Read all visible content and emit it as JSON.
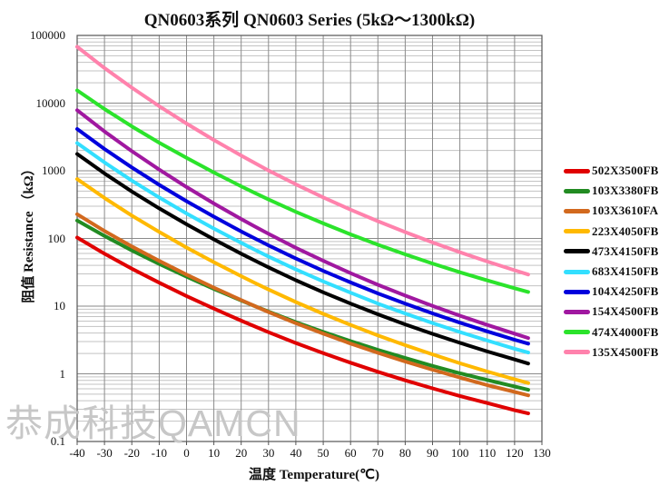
{
  "chart_data": {
    "type": "line",
    "title": "QN0603系列  QN0603 Series (5kΩ～1300kΩ)",
    "xlabel": "温度 Temperature(℃)",
    "ylabel": "阻值 Resistance （kΩ）",
    "watermark": "恭成科技QAMCN",
    "legend_position": "right",
    "x_axis": {
      "min": -40,
      "max": 130,
      "ticks": [
        -40,
        -30,
        -20,
        -10,
        0,
        10,
        20,
        30,
        40,
        50,
        60,
        70,
        80,
        90,
        100,
        110,
        120,
        130
      ]
    },
    "y_axis": {
      "scale": "log",
      "min": 0.1,
      "max": 100000,
      "unit": "kΩ",
      "tick_labels": [
        "100000",
        "10000",
        "1000",
        "100",
        "10",
        "1",
        "0.1"
      ]
    },
    "grid": {
      "major_color": "#8a8a8a",
      "minor_color": "#c3c3c3",
      "border_color": "#555555"
    },
    "x": [
      -40,
      -30,
      -20,
      -10,
      0,
      10,
      20,
      25,
      30,
      40,
      50,
      60,
      70,
      80,
      90,
      100,
      110,
      120,
      125
    ],
    "series": [
      {
        "name": "502X3500FB",
        "color": "#E00000",
        "values": [
          103,
          59.5,
          35.7,
          22.2,
          14.1,
          9.2,
          6.1,
          5,
          4.12,
          2.85,
          2.02,
          1.46,
          1.07,
          0.8,
          0.61,
          0.47,
          0.37,
          0.29,
          0.26
        ]
      },
      {
        "name": "103X3380FB",
        "color": "#228B22",
        "values": [
          184,
          109,
          66.6,
          42,
          27.2,
          18,
          12.1,
          10,
          8.3,
          5.81,
          4.16,
          3.04,
          2.26,
          1.71,
          1.31,
          1.02,
          0.81,
          0.65,
          0.58
        ]
      },
      {
        "name": "103X3610FA",
        "color": "#D2691E",
        "values": [
          228,
          129,
          76.3,
          46.6,
          29.2,
          18.7,
          12.3,
          10,
          8.19,
          5.6,
          3.92,
          2.8,
          2.04,
          1.52,
          1.15,
          0.88,
          0.68,
          0.54,
          0.48
        ]
      },
      {
        "name": "223X4050FB",
        "color": "#FFB900",
        "values": [
          756,
          397,
          218,
          125,
          73.5,
          44.6,
          27.7,
          22,
          17.6,
          11.5,
          7.69,
          5.28,
          3.7,
          2.65,
          1.94,
          1.43,
          1.08,
          0.83,
          0.73
        ]
      },
      {
        "name": "473X4150FB",
        "color": "#000000",
        "values": [
          1770,
          915,
          495,
          278,
          162,
          97,
          59.5,
          47,
          37.4,
          24.1,
          16,
          10.9,
          7.57,
          5.38,
          3.89,
          2.87,
          2.14,
          1.63,
          1.42
        ]
      },
      {
        "name": "683X4150FB",
        "color": "#33DFFF",
        "values": [
          2570,
          1330,
          716,
          403,
          234,
          140,
          86.1,
          68,
          54.1,
          34.9,
          23.2,
          15.8,
          10.9,
          7.78,
          5.63,
          4.15,
          3.1,
          2.35,
          2.06
        ]
      },
      {
        "name": "104X4250FB",
        "color": "#0000DD",
        "values": [
          4140,
          2100,
          1120,
          619,
          355,
          210,
          127,
          100,
          79.1,
          50.5,
          33.2,
          22.4,
          15.4,
          10.9,
          7.8,
          5.7,
          4.23,
          3.19,
          2.79
        ]
      },
      {
        "name": "154X4500FB",
        "color": "#A018A0",
        "values": [
          7850,
          3810,
          1950,
          1040,
          575,
          329,
          194,
          150,
          117,
          72.8,
          46.7,
          30.7,
          20.7,
          14.3,
          10.1,
          7.23,
          5.27,
          3.92,
          3.38
        ]
      },
      {
        "name": "474X4000FB",
        "color": "#2BE32B",
        "values": [
          15400,
          8170,
          4530,
          2600,
          1550,
          944,
          590,
          470,
          377,
          247,
          167,
          115,
          80.9,
          58.2,
          42.6,
          31.7,
          24,
          18.4,
          16.2
        ]
      },
      {
        "name": "135X4500FB",
        "color": "#FF82AC",
        "values": [
          68000,
          33000,
          16900,
          9000,
          4990,
          2850,
          1680,
          1300,
          1010,
          631,
          404,
          266,
          180,
          124,
          87.2,
          62.7,
          45.6,
          33.9,
          29.3
        ]
      }
    ]
  }
}
